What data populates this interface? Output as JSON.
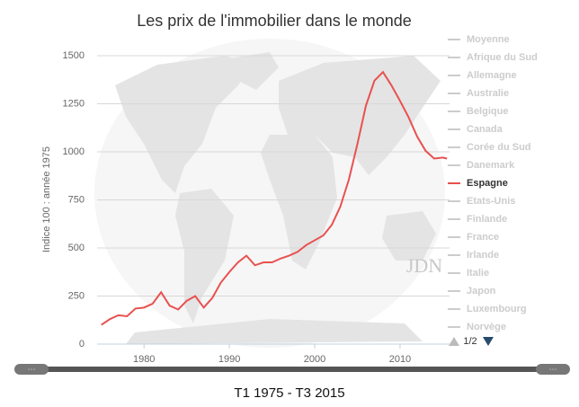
{
  "chart_data": {
    "type": "line",
    "title": "Les prix de l'immobilier dans le monde",
    "y_axis_title": "Indice 100 : année 1975",
    "x": [
      1975,
      1976,
      1977,
      1978,
      1979,
      1980,
      1981,
      1982,
      1983,
      1984,
      1985,
      1986,
      1987,
      1988,
      1989,
      1990,
      1991,
      1992,
      1993,
      1994,
      1995,
      1996,
      1997,
      1998,
      1999,
      2000,
      2001,
      2002,
      2003,
      2004,
      2005,
      2006,
      2007,
      2008,
      2009,
      2010,
      2011,
      2012,
      2013,
      2014,
      2015,
      2015.5
    ],
    "series": [
      {
        "name": "Espagne",
        "color": "#e8514f",
        "values": [
          100,
          130,
          150,
          145,
          185,
          190,
          210,
          270,
          200,
          180,
          225,
          250,
          190,
          240,
          320,
          375,
          425,
          460,
          410,
          425,
          425,
          445,
          460,
          480,
          515,
          540,
          565,
          620,
          715,
          855,
          1040,
          1240,
          1370,
          1415,
          1345,
          1265,
          1180,
          1080,
          1005,
          965,
          970,
          965
        ]
      }
    ],
    "legend_items": [
      "Moyenne",
      "Afrique du Sud",
      "Allemagne",
      "Australie",
      "Belgique",
      "Canada",
      "Corée du Sud",
      "Danemark",
      "Espagne",
      "Etats-Unis",
      "Finlande",
      "France",
      "Irlande",
      "Italie",
      "Japon",
      "Luxembourg",
      "Norvège"
    ],
    "legend_page": "1/2",
    "watermark": "JDN",
    "xlim": [
      1974.5,
      2015.8
    ],
    "xticks": [
      1980,
      1990,
      2000,
      2010
    ],
    "ylim": [
      0,
      1500
    ],
    "yticks": [
      0,
      250,
      500,
      750,
      1000,
      1250,
      1500
    ],
    "grid": true,
    "range_caption": "T1 1975 - T3 2015"
  }
}
